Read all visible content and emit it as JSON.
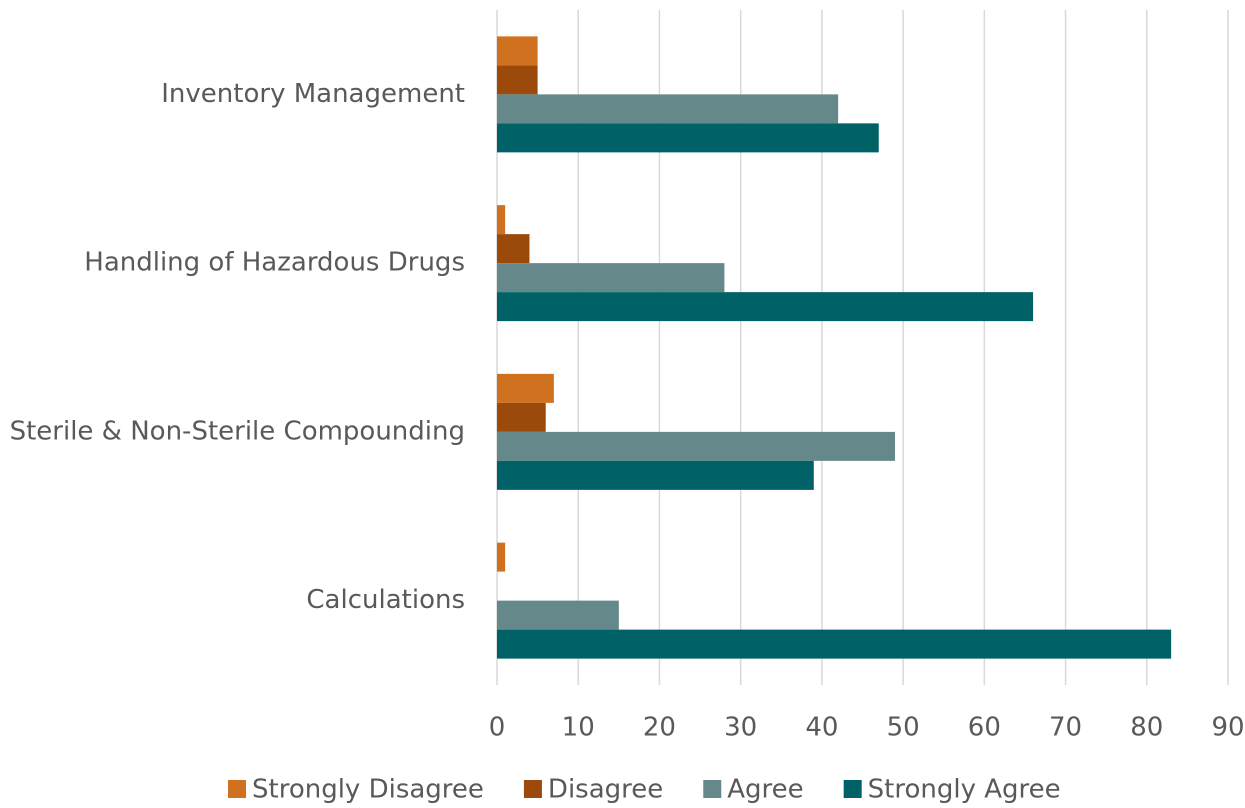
{
  "chart_data": {
    "type": "bar",
    "orientation": "horizontal",
    "categories": [
      "Inventory Management",
      "Handling of Hazardous Drugs",
      "Sterile & Non-Sterile Compounding",
      "Calculations"
    ],
    "series": [
      {
        "name": "Strongly Disagree",
        "color": "#d0711f",
        "values": [
          5,
          1,
          7,
          1
        ]
      },
      {
        "name": "Disagree",
        "color": "#9c4a0c",
        "values": [
          5,
          4,
          6,
          0
        ]
      },
      {
        "name": "Agree",
        "color": "#65898b",
        "values": [
          42,
          28,
          49,
          15
        ]
      },
      {
        "name": "Strongly Agree",
        "color": "#006266",
        "values": [
          47,
          66,
          39,
          83
        ]
      }
    ],
    "xlim": [
      0,
      90
    ],
    "xticks": [
      0,
      10,
      20,
      30,
      40,
      50,
      60,
      70,
      80,
      90
    ],
    "grid": true,
    "legend": "bottom"
  }
}
